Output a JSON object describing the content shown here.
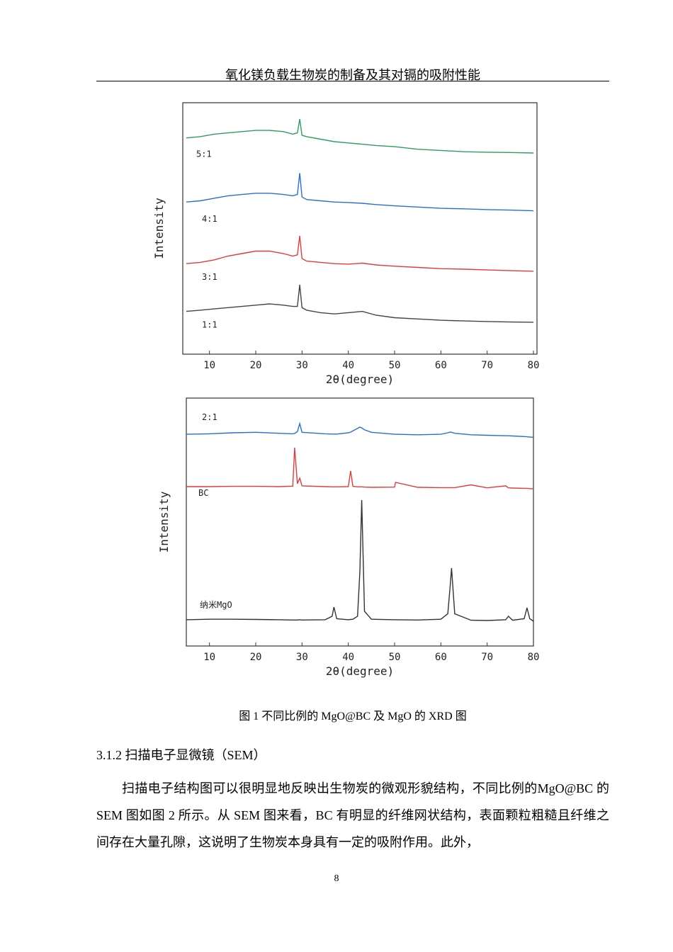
{
  "header": {
    "title": "氧化镁负载生物炭的制备及其对镉的吸附性能"
  },
  "chart_data": [
    {
      "type": "line",
      "xlabel": "2θ(degree)",
      "ylabel": "Intensity",
      "x": [
        5,
        8,
        11,
        14,
        17,
        20,
        23,
        26,
        28,
        29,
        29.5,
        30,
        31,
        34,
        37,
        40,
        43,
        46,
        50,
        55,
        60,
        65,
        70,
        75,
        80
      ],
      "xlim": [
        5,
        80
      ],
      "xticks": [
        10,
        20,
        30,
        40,
        50,
        60,
        70,
        80
      ],
      "ylim": [
        0,
        100
      ],
      "series": [
        {
          "name": "5:1",
          "color": "#2e9e5e",
          "values": [
            86,
            86.5,
            87.5,
            88,
            88.5,
            89,
            89,
            88.5,
            87.5,
            88,
            93.5,
            87,
            86.5,
            85.5,
            84.5,
            84,
            83.5,
            83,
            82.5,
            81.5,
            81,
            80.5,
            80.3,
            80.2,
            80
          ]
        },
        {
          "name": "4:1",
          "color": "#2a6fd0",
          "values": [
            60.5,
            61,
            62,
            63,
            63.5,
            64,
            64,
            63.5,
            63,
            63.5,
            72,
            62.5,
            61.5,
            61,
            60.5,
            60.3,
            60,
            59.5,
            59,
            58.5,
            58,
            57.8,
            57.5,
            57.3,
            57
          ]
        },
        {
          "name": "3:1",
          "color": "#e03c3c",
          "values": [
            36,
            36.5,
            37.5,
            39,
            40,
            41,
            41,
            40,
            39,
            39.5,
            47,
            38,
            37,
            36.5,
            36,
            35.8,
            36.2,
            35.5,
            35,
            34.5,
            34,
            33.8,
            33.5,
            33.2,
            33
          ]
        },
        {
          "name": "1:1",
          "color": "#444444",
          "values": [
            17,
            17.5,
            18,
            18.5,
            19,
            19.5,
            20,
            19.5,
            19,
            19,
            27.6,
            18.5,
            17.5,
            16.5,
            16,
            16.5,
            17,
            15.5,
            14.5,
            14,
            13.5,
            13.2,
            13,
            12.8,
            12.7
          ]
        }
      ]
    },
    {
      "type": "line",
      "xlabel": "2θ(degree)",
      "ylabel": "Intensity",
      "x": [
        5,
        10,
        15,
        20,
        25,
        28,
        28.4,
        29,
        29.5,
        30,
        35,
        36.5,
        36.9,
        37.5,
        40,
        40.5,
        41,
        42,
        42.5,
        42.9,
        43.5,
        45,
        50,
        50.2,
        55,
        60,
        61.5,
        62,
        62.3,
        63,
        66.5,
        70,
        74,
        74.6,
        75.5,
        78,
        78.6,
        79.2,
        80
      ],
      "xlim": [
        5,
        80
      ],
      "xticks": [
        10,
        20,
        30,
        40,
        50,
        60,
        70,
        80
      ],
      "ylim": [
        0,
        100
      ],
      "series": [
        {
          "name": "2:1",
          "color": "#2a6fd0",
          "values": [
            85.4,
            85.6,
            86,
            86.2,
            85.8,
            85.6,
            85.7,
            86.5,
            89.7,
            86.2,
            85.6,
            85.5,
            85.5,
            85.5,
            86,
            86.3,
            86.8,
            87.8,
            88.3,
            88,
            87.2,
            86.2,
            85.4,
            85.4,
            85.2,
            85.4,
            86,
            86.3,
            86.2,
            85.8,
            85.2,
            85,
            84.8,
            84.8,
            84.7,
            84.5,
            84.4,
            84.3,
            84.2
          ]
        },
        {
          "name": "BC",
          "color": "#e03c3c",
          "values": [
            64.3,
            64.3,
            64.4,
            64.4,
            64.3,
            64.5,
            80,
            65.5,
            67.7,
            64.6,
            64.3,
            64.2,
            64.2,
            64.2,
            64.3,
            70.6,
            64.4,
            64.2,
            64.2,
            64.2,
            64.1,
            64,
            64.1,
            66,
            64,
            63.9,
            63.9,
            63.9,
            63.9,
            63.9,
            65,
            63.8,
            64.6,
            63.8,
            63.7,
            63.6,
            63.6,
            63.5,
            63.4
          ]
        },
        {
          "name": "纳米MgO",
          "color": "#333333",
          "values": [
            10.6,
            10.8,
            10.8,
            10.7,
            10.6,
            10.5,
            10.5,
            10.5,
            10.6,
            10.5,
            10.6,
            12,
            15.7,
            11,
            10.6,
            10.7,
            10.8,
            12,
            30,
            58.9,
            14,
            10.8,
            10.6,
            10.6,
            10.5,
            10.8,
            13,
            24,
            31.4,
            13,
            10.4,
            10.3,
            10.6,
            12,
            10.4,
            11,
            15.4,
            11,
            10
          ]
        }
      ]
    }
  ],
  "caption": "图 1 不同比例的 MgO@BC 及 MgO 的 XRD 图",
  "section": {
    "heading": "3.1.2 扫描电子显微镜（SEM）",
    "paragraph": "扫描电子结构图可以很明显地反映出生物炭的微观形貌结构，不同比例的MgO@BC 的 SEM 图如图 2 所示。从 SEM 图来看，BC 有明显的纤维网状结构，表面颗粒粗糙且纤维之间存在大量孔隙，这说明了生物炭本身具有一定的吸附作用。此外，"
  },
  "page_number": "8"
}
